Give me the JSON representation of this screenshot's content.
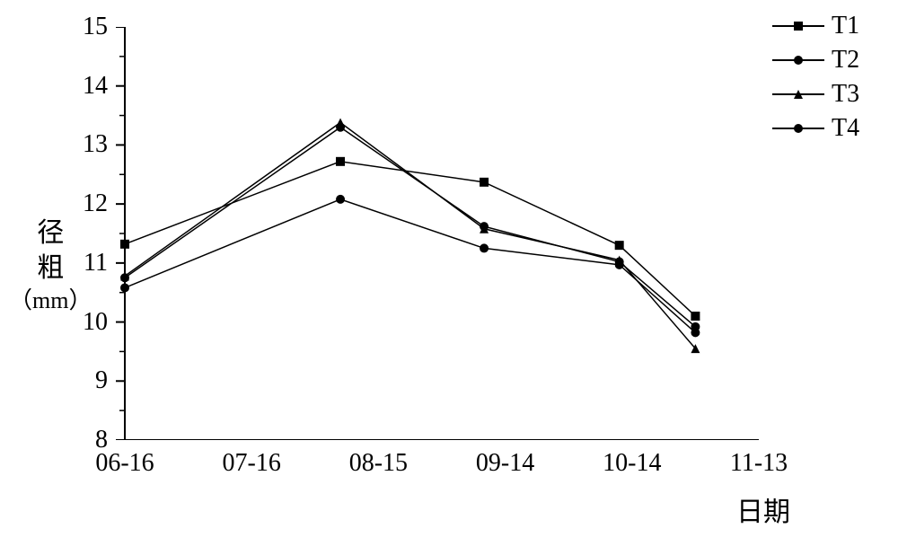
{
  "chart": {
    "type": "line",
    "background_color": "#ffffff",
    "axis_color": "#000000",
    "line_color": "#000000",
    "text_color": "#000000",
    "ylabel_line1": "径",
    "ylabel_line2": "粗",
    "ylabel_unit": "（mm）",
    "xlabel": "日期",
    "ylim": [
      8,
      15
    ],
    "ytick_step": 1,
    "yticks": [
      8,
      9,
      10,
      11,
      12,
      13,
      14,
      15
    ],
    "xlim_min": "06-16",
    "xlim_max": "11-13",
    "xtick_positions": [
      0,
      30,
      60,
      90,
      120,
      150
    ],
    "xtick_labels": [
      "06-16",
      "07-16",
      "08-15",
      "09-14",
      "10-14",
      "11-13"
    ],
    "label_fontsize": 30,
    "tick_fontsize": 28,
    "tick_length_major": 10,
    "tick_length_minor": 6,
    "axis_width": 2,
    "line_width": 1.5,
    "marker_size": 10,
    "series": [
      {
        "name": "T1",
        "marker": "square",
        "x": [
          0,
          51,
          85,
          117,
          135
        ],
        "y": [
          11.32,
          12.72,
          12.37,
          11.3,
          10.1
        ]
      },
      {
        "name": "T2",
        "marker": "circle",
        "x": [
          0,
          51,
          85,
          117,
          135
        ],
        "y": [
          10.75,
          13.3,
          11.62,
          11.02,
          9.92
        ]
      },
      {
        "name": "T3",
        "marker": "triangle",
        "x": [
          0,
          51,
          85,
          117,
          135
        ],
        "y": [
          10.78,
          13.38,
          11.58,
          11.05,
          9.55
        ]
      },
      {
        "name": "T4",
        "marker": "circle",
        "x": [
          0,
          51,
          85,
          117,
          135
        ],
        "y": [
          10.58,
          12.08,
          11.25,
          10.97,
          9.82
        ]
      }
    ]
  }
}
